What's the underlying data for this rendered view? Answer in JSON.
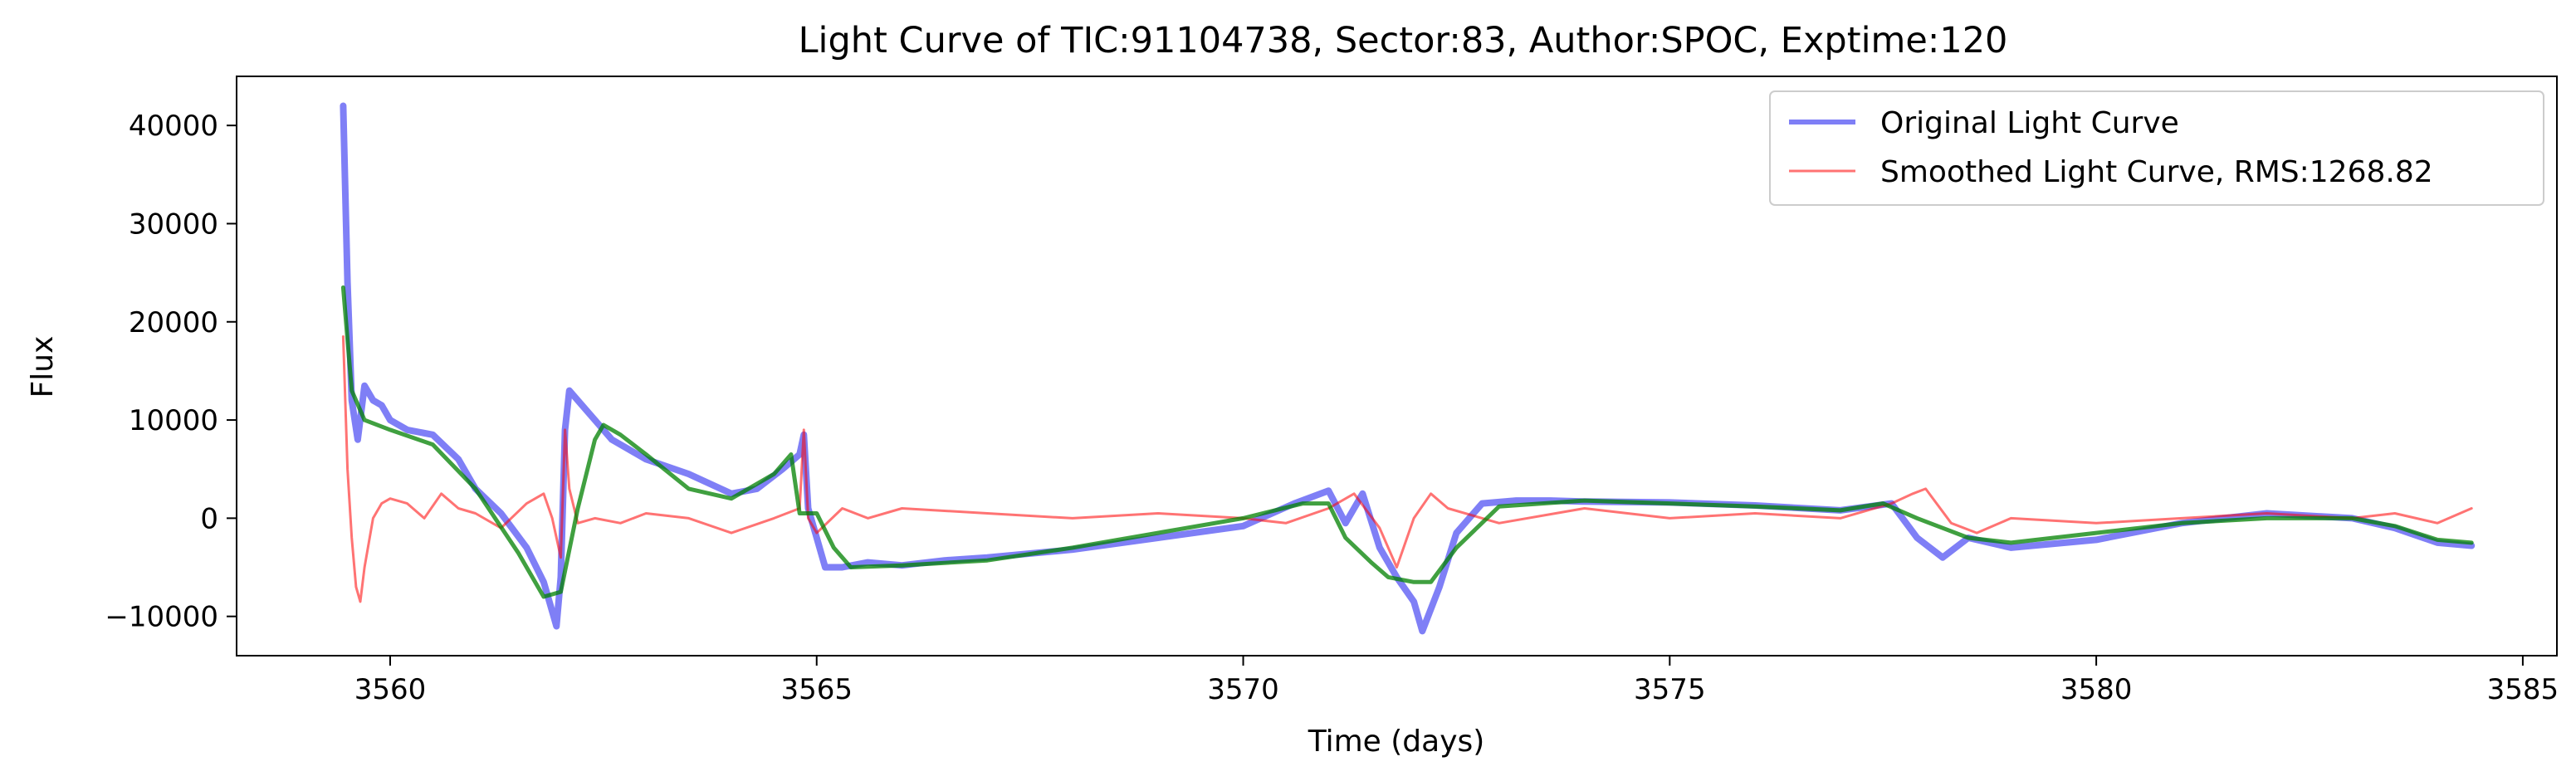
{
  "chart_data": {
    "type": "line",
    "title": "Light Curve of TIC:91104738, Sector:83, Author:SPOC, Exptime:120",
    "xlabel": "Time (days)",
    "ylabel": "Flux",
    "xlim": [
      3558.2,
      3585.4
    ],
    "ylim": [
      -14000,
      45000
    ],
    "xticks": [
      3560,
      3565,
      3570,
      3575,
      3580,
      3585
    ],
    "yticks": [
      -10000,
      0,
      10000,
      20000,
      30000,
      40000
    ],
    "xtick_labels": [
      "3560",
      "3565",
      "3570",
      "3575",
      "3580",
      "3585"
    ],
    "ytick_labels": [
      "−10000",
      "0",
      "10000",
      "20000",
      "30000",
      "40000"
    ],
    "grid": false,
    "legend_position": "upper right",
    "series": [
      {
        "name": "Original Light Curve",
        "color": "#0000ee",
        "x": [
          3559.45,
          3559.5,
          3559.55,
          3559.62,
          3559.7,
          3559.8,
          3559.9,
          3560.0,
          3560.2,
          3560.5,
          3560.8,
          3561.0,
          3561.3,
          3561.6,
          3561.8,
          3561.9,
          3561.95,
          3562.0,
          3562.05,
          3562.1,
          3562.3,
          3562.6,
          3563.0,
          3563.5,
          3564.0,
          3564.3,
          3564.6,
          3564.8,
          3564.85,
          3564.9,
          3565.0,
          3565.1,
          3565.3,
          3565.6,
          3566.0,
          3566.5,
          3567.0,
          3568.0,
          3569.0,
          3570.0,
          3570.6,
          3571.0,
          3571.2,
          3571.4,
          3571.6,
          3571.8,
          3572.0,
          3572.1,
          3572.3,
          3572.5,
          3572.8,
          3573.2,
          3573.6,
          3574.0,
          3575.0,
          3576.0,
          3577.0,
          3577.6,
          3577.9,
          3578.2,
          3578.5,
          3579.0,
          3580.0,
          3581.0,
          3582.0,
          3583.0,
          3583.5,
          3584.0,
          3584.4
        ],
        "y": [
          42000,
          24000,
          12000,
          8000,
          13500,
          12000,
          11500,
          10000,
          9000,
          8500,
          6000,
          3000,
          500,
          -3000,
          -6500,
          -9500,
          -11000,
          -6000,
          9000,
          13000,
          11000,
          8000,
          6000,
          4500,
          2500,
          3000,
          5000,
          6500,
          8500,
          1000,
          -2000,
          -5000,
          -5000,
          -4500,
          -4800,
          -4300,
          -4000,
          -3200,
          -2000,
          -800,
          1500,
          2800,
          -500,
          2500,
          -3000,
          -6000,
          -8500,
          -11500,
          -7000,
          -1500,
          1500,
          1800,
          1800,
          1700,
          1600,
          1300,
          800,
          1500,
          -2000,
          -4000,
          -2000,
          -3000,
          -2200,
          -500,
          500,
          0,
          -1000,
          -2500,
          -2800
        ]
      },
      {
        "name": "Smoothed Light Curve, RMS:1268.82",
        "color": "#ff0000",
        "x": [
          3559.45,
          3559.5,
          3559.55,
          3559.6,
          3559.65,
          3559.7,
          3559.8,
          3559.9,
          3560.0,
          3560.2,
          3560.4,
          3560.6,
          3560.8,
          3561.0,
          3561.3,
          3561.6,
          3561.8,
          3561.9,
          3562.0,
          3562.05,
          3562.1,
          3562.2,
          3562.4,
          3562.7,
          3563.0,
          3563.5,
          3564.0,
          3564.5,
          3564.8,
          3564.85,
          3564.9,
          3565.0,
          3565.3,
          3565.6,
          3566.0,
          3567.0,
          3568.0,
          3569.0,
          3570.0,
          3570.5,
          3571.0,
          3571.3,
          3571.6,
          3571.7,
          3571.8,
          3572.0,
          3572.2,
          3572.4,
          3573.0,
          3574.0,
          3575.0,
          3576.0,
          3577.0,
          3577.6,
          3577.85,
          3578.0,
          3578.3,
          3578.6,
          3579.0,
          3580.0,
          3581.0,
          3582.0,
          3583.0,
          3583.5,
          3584.0,
          3584.4
        ],
        "y": [
          18500,
          5000,
          -2000,
          -7000,
          -8500,
          -5000,
          0,
          1500,
          2000,
          1500,
          0,
          2500,
          1000,
          500,
          -1000,
          1500,
          2500,
          0,
          -4000,
          9000,
          3000,
          -500,
          0,
          -500,
          500,
          0,
          -1500,
          0,
          1000,
          9000,
          0,
          -1500,
          1000,
          0,
          1000,
          500,
          0,
          500,
          0,
          -500,
          1000,
          2500,
          -1000,
          -3000,
          -5000,
          0,
          2500,
          1000,
          -500,
          1000,
          0,
          500,
          0,
          1500,
          2500,
          3000,
          -500,
          -1500,
          0,
          -500,
          0,
          500,
          0,
          500,
          -500,
          1000
        ]
      },
      {
        "name": "",
        "color": "#008000",
        "x": [
          3559.45,
          3559.55,
          3559.7,
          3560.0,
          3560.5,
          3561.0,
          3561.5,
          3561.8,
          3562.0,
          3562.2,
          3562.4,
          3562.5,
          3562.7,
          3563.0,
          3563.5,
          3564.0,
          3564.5,
          3564.7,
          3564.8,
          3565.0,
          3565.2,
          3565.4,
          3566.0,
          3567.0,
          3568.0,
          3569.0,
          3570.0,
          3570.7,
          3571.0,
          3571.2,
          3571.5,
          3571.7,
          3572.0,
          3572.2,
          3572.5,
          3573.0,
          3574.0,
          3575.0,
          3576.0,
          3577.0,
          3577.5,
          3577.9,
          3578.2,
          3578.5,
          3579.0,
          3580.0,
          3581.0,
          3582.0,
          3583.0,
          3583.5,
          3584.0,
          3584.4
        ],
        "y": [
          23500,
          13000,
          10000,
          9000,
          7500,
          3000,
          -3500,
          -8000,
          -7500,
          1000,
          8000,
          9500,
          8500,
          6500,
          3000,
          2000,
          4500,
          6500,
          500,
          500,
          -3000,
          -5000,
          -4800,
          -4300,
          -3000,
          -1500,
          0,
          1500,
          1500,
          -2000,
          -4500,
          -6000,
          -6500,
          -6500,
          -3000,
          1200,
          1800,
          1500,
          1200,
          800,
          1500,
          0,
          -1000,
          -2000,
          -2500,
          -1500,
          -500,
          0,
          0,
          -800,
          -2200,
          -2500
        ]
      }
    ],
    "legend": [
      {
        "label": "Original Light Curve",
        "color": "#0000ee"
      },
      {
        "label": "Smoothed Light Curve, RMS:1268.82",
        "color": "#ff0000"
      }
    ]
  }
}
